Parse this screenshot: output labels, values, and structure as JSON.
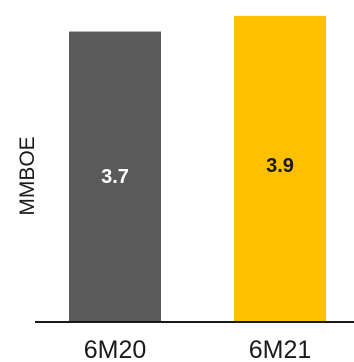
{
  "chart_data": {
    "type": "bar",
    "categories": [
      "6M20",
      "6M21"
    ],
    "values": [
      3.7,
      3.9
    ],
    "data_labels": [
      "3.7",
      "3.9"
    ],
    "title": "",
    "xlabel": "",
    "ylabel": "MMBOE",
    "ylim": [
      0,
      4.0
    ],
    "grid": false,
    "legend": "none",
    "colors": {
      "bars": [
        "#5a5a5a",
        "#ffc000"
      ],
      "labels": [
        "#ffffff",
        "#1a1a1a"
      ],
      "axis": "#1a1a1a"
    }
  }
}
